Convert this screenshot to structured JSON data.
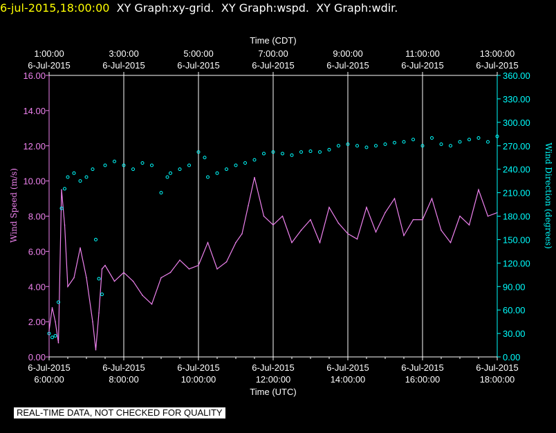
{
  "header": {
    "timestamp": "6-jul-2015,18:00:00",
    "graphs": [
      "XY Graph:xy-grid.",
      "XY Graph:wspd.",
      "XY Graph:wdir."
    ]
  },
  "disclaimer": "REAL-TIME DATA, NOT CHECKED FOR QUALITY",
  "colors": {
    "speed": "#ee82ee",
    "direction": "#00ffff",
    "axis_time": "#ffffff",
    "grid": "#ffffff"
  },
  "chart_data": {
    "type": "line",
    "top_axis": {
      "label": "Time (CDT)",
      "ticks": [
        {
          "time": "1:00:00",
          "date": "6-Jul-2015"
        },
        {
          "time": "3:00:00",
          "date": "6-Jul-2015"
        },
        {
          "time": "5:00:00",
          "date": "6-Jul-2015"
        },
        {
          "time": "7:00:00",
          "date": "6-Jul-2015"
        },
        {
          "time": "9:00:00",
          "date": "6-Jul-2015"
        },
        {
          "time": "11:00:00",
          "date": "6-Jul-2015"
        },
        {
          "time": "13:00:00",
          "date": "6-Jul-2015"
        }
      ]
    },
    "bottom_axis": {
      "label": "Time (UTC)",
      "range": [
        "2015-07-06T06:00:00",
        "2015-07-06T18:00:00"
      ],
      "ticks": [
        {
          "date": "6-Jul-2015",
          "time": "6:00:00"
        },
        {
          "date": "6-Jul-2015",
          "time": "8:00:00"
        },
        {
          "date": "6-Jul-2015",
          "time": "10:00:00"
        },
        {
          "date": "6-Jul-2015",
          "time": "12:00:00"
        },
        {
          "date": "6-Jul-2015",
          "time": "14:00:00"
        },
        {
          "date": "6-Jul-2015",
          "time": "16:00:00"
        },
        {
          "date": "6-Jul-2015",
          "time": "18:00:00"
        }
      ]
    },
    "left_axis": {
      "label": "Wind Speed (m/s)",
      "ylim": [
        0,
        16
      ],
      "ticks": [
        "0.00",
        "2.00",
        "4.00",
        "6.00",
        "8.00",
        "10.00",
        "12.00",
        "14.00",
        "16.00"
      ]
    },
    "right_axis": {
      "label": "Wind Direction (degrees)",
      "ylim": [
        0,
        360
      ],
      "ticks": [
        "0.00",
        "30.00",
        "60.00",
        "90.00",
        "120.00",
        "150.00",
        "180.00",
        "210.00",
        "240.00",
        "270.00",
        "300.00",
        "330.00",
        "360.00"
      ]
    },
    "grid": "vertical lines at each 2-hour tick",
    "series": [
      {
        "style": "line",
        "axis": "left",
        "x": [
          "06:00",
          "06:05",
          "06:10",
          "06:15",
          "06:20",
          "06:25",
          "06:30",
          "06:40",
          "06:50",
          "07:00",
          "07:10",
          "07:15",
          "07:20",
          "07:25",
          "07:30",
          "07:45",
          "08:00",
          "08:15",
          "08:30",
          "08:45",
          "09:00",
          "09:15",
          "09:30",
          "09:45",
          "10:00",
          "10:15",
          "10:30",
          "10:45",
          "11:00",
          "11:10",
          "11:20",
          "11:30",
          "11:45",
          "12:00",
          "12:15",
          "12:30",
          "12:45",
          "13:00",
          "13:15",
          "13:30",
          "13:45",
          "14:00",
          "14:15",
          "14:30",
          "14:45",
          "15:00",
          "15:15",
          "15:30",
          "15:45",
          "16:00",
          "16:15",
          "16:30",
          "16:45",
          "17:00",
          "17:15",
          "17:30",
          "17:45",
          "18:00"
        ],
        "values": [
          1.5,
          2.8,
          2.0,
          0.8,
          9.5,
          7.5,
          4.0,
          4.5,
          6.2,
          4.5,
          2.0,
          0.4,
          2.5,
          5.0,
          5.2,
          4.3,
          4.8,
          4.3,
          3.5,
          3.0,
          4.5,
          4.8,
          5.5,
          5.0,
          5.2,
          6.5,
          5.0,
          5.4,
          6.5,
          7.0,
          8.6,
          10.2,
          8.0,
          7.5,
          8.0,
          6.5,
          7.2,
          7.8,
          6.5,
          8.5,
          7.6,
          7.0,
          6.7,
          8.5,
          7.1,
          8.2,
          9.0,
          6.9,
          7.8,
          7.8,
          9.0,
          7.2,
          6.5,
          8.0,
          7.5,
          9.5,
          8.0,
          8.2
        ]
      },
      {
        "style": "scatter",
        "axis": "right",
        "x": [
          "06:00",
          "06:05",
          "06:10",
          "06:15",
          "06:20",
          "06:25",
          "06:30",
          "06:40",
          "06:50",
          "07:00",
          "07:10",
          "07:15",
          "07:20",
          "07:25",
          "07:30",
          "07:45",
          "08:00",
          "08:15",
          "08:30",
          "08:45",
          "09:00",
          "09:10",
          "09:15",
          "09:30",
          "09:45",
          "10:00",
          "10:10",
          "10:15",
          "10:30",
          "10:45",
          "11:00",
          "11:15",
          "11:30",
          "11:45",
          "12:00",
          "12:15",
          "12:30",
          "12:45",
          "13:00",
          "13:15",
          "13:30",
          "13:45",
          "14:00",
          "14:15",
          "14:30",
          "14:45",
          "15:00",
          "15:15",
          "15:30",
          "15:45",
          "16:00",
          "16:15",
          "16:30",
          "16:45",
          "17:00",
          "17:15",
          "17:30",
          "17:45",
          "18:00"
        ],
        "values": [
          30,
          25,
          27,
          70,
          190,
          215,
          230,
          235,
          225,
          230,
          240,
          150,
          100,
          80,
          245,
          250,
          245,
          240,
          248,
          245,
          210,
          230,
          235,
          240,
          245,
          262,
          255,
          230,
          235,
          240,
          245,
          248,
          252,
          260,
          262,
          260,
          258,
          262,
          263,
          262,
          265,
          270,
          272,
          270,
          268,
          270,
          272,
          274,
          275,
          278,
          270,
          280,
          272,
          270,
          275,
          278,
          280,
          275,
          282
        ]
      }
    ]
  }
}
